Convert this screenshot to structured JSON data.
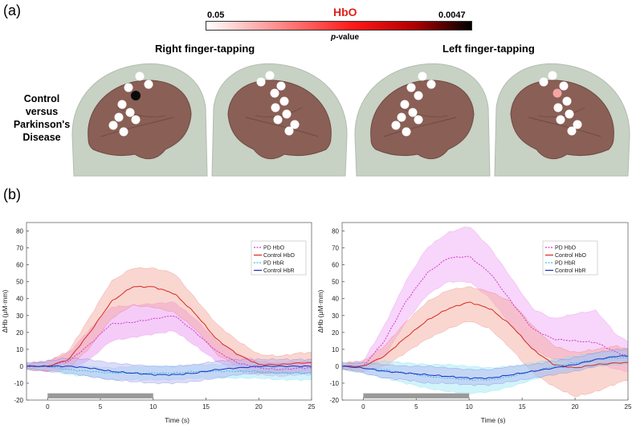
{
  "panel_a": {
    "label": "(a)",
    "colorbar": {
      "title": "HbO",
      "min_label": "0.05",
      "max_label": "0.0047",
      "variable_label_italic": "p",
      "variable_label_rest": "-value",
      "colors": [
        "#ffffff",
        "#ff2a2a",
        "#000000"
      ]
    },
    "conditions": [
      "Right finger-tapping",
      "Left finger-tapping"
    ],
    "row_label": [
      "Control",
      "versus",
      "Parkinson's",
      "Disease"
    ],
    "colors": {
      "head": "#c7d1c4",
      "brain": "#8a5f55",
      "channel": "#ffffff",
      "significant_strong": "#0a0a0a",
      "significant_weak": "#f4a5a5"
    }
  },
  "panel_b": {
    "label": "(b)"
  },
  "chart_data": [
    {
      "type": "line",
      "title": "Right finger-tapping",
      "xlabel": "Time (s)",
      "ylabel": "ΔHb (μM·mm)",
      "xlim": [
        -2,
        25
      ],
      "ylim": [
        -20,
        85
      ],
      "xticks": [
        0,
        5,
        10,
        15,
        20,
        25
      ],
      "yticks": [
        -20,
        -10,
        0,
        10,
        20,
        30,
        40,
        50,
        60,
        70,
        80
      ],
      "task_block": [
        0,
        10
      ],
      "legend_position": "right",
      "series": [
        {
          "name": "PD HbO",
          "color": "#d13ad1",
          "fill": "#e88ff0",
          "dash": "dashed",
          "x": [
            -2,
            0,
            2,
            4,
            6,
            8,
            10,
            12,
            14,
            16,
            18,
            20,
            22,
            24,
            25
          ],
          "mean": [
            0,
            0,
            3,
            13,
            25,
            26,
            28,
            30,
            20,
            9,
            2,
            -1,
            -2,
            -1,
            -1
          ],
          "lower": [
            -2,
            -3,
            -2,
            4,
            15,
            17,
            19,
            21,
            12,
            3,
            -3,
            -5,
            -6,
            -5,
            -5
          ],
          "upper": [
            2,
            3,
            8,
            22,
            35,
            36,
            37,
            38,
            28,
            15,
            7,
            3,
            2,
            3,
            3
          ]
        },
        {
          "name": "Control HbO",
          "color": "#d42b1e",
          "fill": "#f5a39a",
          "dash": "solid",
          "x": [
            -2,
            0,
            2,
            4,
            6,
            8,
            10,
            12,
            14,
            16,
            18,
            20,
            22,
            24,
            25
          ],
          "mean": [
            0,
            0,
            4,
            20,
            38,
            47,
            47,
            43,
            31,
            16,
            7,
            1,
            1,
            2,
            2
          ],
          "lower": [
            -2,
            -3,
            -1,
            11,
            28,
            36,
            35,
            32,
            22,
            7,
            0,
            -4,
            -4,
            -3,
            -2
          ],
          "upper": [
            2,
            3,
            9,
            29,
            50,
            58,
            58,
            55,
            40,
            25,
            15,
            7,
            6,
            8,
            8
          ]
        },
        {
          "name": "PD HbR",
          "color": "#2ec4e8",
          "fill": "#98e6f5",
          "dash": "dashed",
          "x": [
            -2,
            0,
            2,
            4,
            6,
            8,
            10,
            12,
            14,
            16,
            18,
            20,
            22,
            24,
            25
          ],
          "mean": [
            0,
            0,
            -2,
            -3,
            -4,
            -4,
            -4,
            -4,
            -3,
            -3,
            -3,
            -3,
            -4,
            -4,
            -4
          ],
          "lower": [
            -2,
            -2,
            -5,
            -6,
            -8,
            -8,
            -8,
            -8,
            -7,
            -7,
            -7,
            -7,
            -8,
            -8,
            -8
          ],
          "upper": [
            2,
            2,
            1,
            0,
            -1,
            0,
            0,
            0,
            1,
            1,
            1,
            1,
            0,
            0,
            0
          ]
        },
        {
          "name": "Control HbR",
          "color": "#1a2fc2",
          "fill": "#b3b2ef",
          "dash": "solid",
          "x": [
            -2,
            0,
            2,
            4,
            6,
            8,
            10,
            12,
            14,
            16,
            18,
            20,
            22,
            24,
            25
          ],
          "mean": [
            0,
            0,
            0,
            -1,
            -3,
            -4,
            -5,
            -5,
            -4,
            -2,
            -1,
            0,
            0,
            0,
            0
          ],
          "lower": [
            -1,
            -3,
            -4,
            -6,
            -8,
            -9,
            -10,
            -10,
            -9,
            -7,
            -5,
            -4,
            -4,
            -4,
            -4
          ],
          "upper": [
            1,
            3,
            5,
            4,
            2,
            1,
            0,
            0,
            1,
            3,
            4,
            4,
            4,
            4,
            4
          ]
        }
      ]
    },
    {
      "type": "line",
      "title": "Left finger-tapping",
      "xlabel": "Time (s)",
      "ylabel": "ΔHb (μM·mm)",
      "xlim": [
        -2,
        25
      ],
      "ylim": [
        -20,
        85
      ],
      "xticks": [
        0,
        5,
        10,
        15,
        20,
        25
      ],
      "yticks": [
        -20,
        -10,
        0,
        10,
        20,
        30,
        40,
        50,
        60,
        70,
        80
      ],
      "task_block": [
        0,
        10
      ],
      "legend_position": "right",
      "series": [
        {
          "name": "PD HbO",
          "color": "#d13ad1",
          "fill": "#f0a1f3",
          "dash": "dashed",
          "x": [
            -2,
            0,
            2,
            4,
            6,
            8,
            10,
            12,
            14,
            16,
            18,
            20,
            22,
            24,
            25
          ],
          "mean": [
            0,
            0,
            15,
            38,
            55,
            64,
            65,
            55,
            38,
            22,
            16,
            15,
            14,
            8,
            6
          ],
          "lower": [
            -2,
            -3,
            6,
            26,
            42,
            50,
            50,
            40,
            24,
            10,
            4,
            2,
            2,
            -2,
            -3
          ],
          "upper": [
            2,
            3,
            24,
            50,
            70,
            79,
            83,
            70,
            52,
            34,
            28,
            31,
            33,
            18,
            15
          ]
        },
        {
          "name": "Control HbO",
          "color": "#d42b1e",
          "fill": "#f5a39a",
          "dash": "solid",
          "x": [
            -2,
            0,
            2,
            4,
            6,
            8,
            10,
            12,
            14,
            16,
            18,
            20,
            22,
            24,
            25
          ],
          "mean": [
            0,
            0,
            6,
            17,
            27,
            34,
            38,
            34,
            24,
            10,
            1,
            -1,
            1,
            2,
            2
          ],
          "lower": [
            -2,
            -3,
            0,
            8,
            16,
            22,
            27,
            22,
            10,
            -4,
            -12,
            -18,
            -15,
            -10,
            -8
          ],
          "upper": [
            2,
            3,
            12,
            26,
            38,
            45,
            47,
            44,
            38,
            24,
            12,
            8,
            10,
            12,
            10
          ]
        },
        {
          "name": "PD HbR",
          "color": "#2ec4e8",
          "fill": "#98e6f5",
          "dash": "dashed",
          "x": [
            -2,
            0,
            2,
            4,
            6,
            8,
            10,
            12,
            14,
            16,
            18,
            20,
            22,
            24,
            25
          ],
          "mean": [
            0,
            -1,
            -2,
            -4,
            -6,
            -7,
            -8,
            -8,
            -6,
            -3,
            0,
            2,
            4,
            5,
            5
          ],
          "lower": [
            -2,
            -4,
            -7,
            -10,
            -13,
            -15,
            -16,
            -15,
            -12,
            -8,
            -4,
            -2,
            0,
            1,
            1
          ],
          "upper": [
            2,
            2,
            3,
            2,
            1,
            1,
            0,
            -1,
            0,
            2,
            4,
            6,
            8,
            9,
            9
          ]
        },
        {
          "name": "Control HbR",
          "color": "#1a2fc2",
          "fill": "#b3b2ef",
          "dash": "solid",
          "x": [
            -2,
            0,
            2,
            4,
            6,
            8,
            10,
            12,
            14,
            16,
            18,
            20,
            22,
            24,
            25
          ],
          "mean": [
            0,
            -1,
            -3,
            -4,
            -5,
            -6,
            -7,
            -7,
            -5,
            -3,
            -1,
            1,
            4,
            6,
            6
          ],
          "lower": [
            -1,
            -4,
            -7,
            -8,
            -10,
            -10,
            -11,
            -11,
            -9,
            -7,
            -5,
            -3,
            0,
            2,
            2
          ],
          "upper": [
            1,
            2,
            1,
            0,
            0,
            -1,
            -2,
            -2,
            0,
            1,
            3,
            5,
            8,
            10,
            10
          ]
        }
      ]
    }
  ]
}
